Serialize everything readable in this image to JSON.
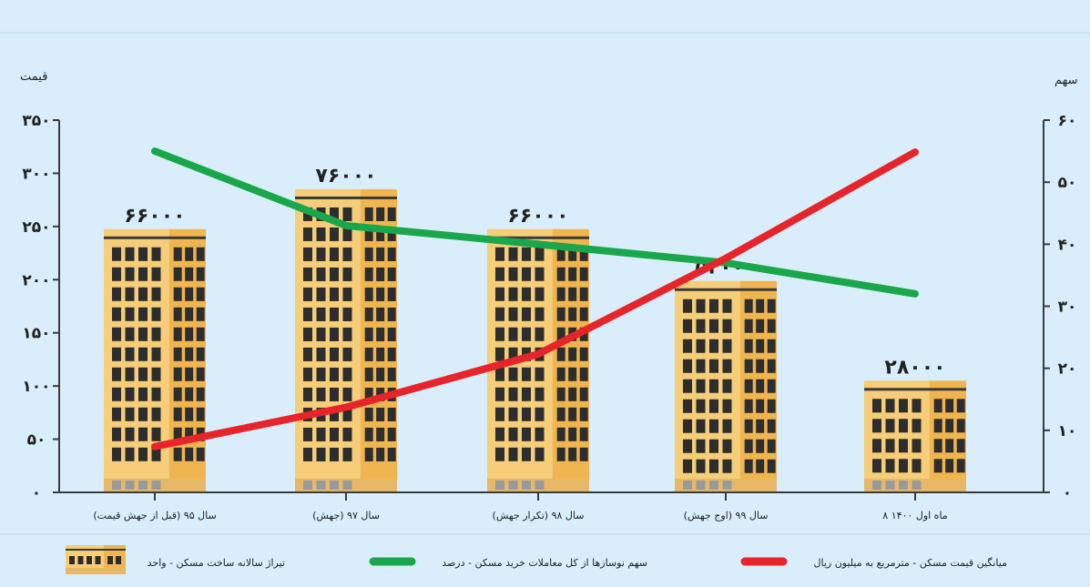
{
  "chart_data": {
    "type": "bar",
    "categories": [
      "سال ۹۵ (قبل از جهش قیمت)",
      "سال ۹۷ (جهش)",
      "سال ۹۸ (تکرار جهش)",
      "سال ۹۹ (اوج جهش)",
      "۸ ماه اول ۱۴۰۰"
    ],
    "left_axis": {
      "label": "قیمت",
      "ylim": [
        0,
        350
      ],
      "ticks": [
        0,
        50,
        100,
        150,
        200,
        250,
        300,
        350
      ],
      "tick_labels": [
        "۰",
        "۵۰",
        "۱۰۰",
        "۱۵۰",
        "۲۰۰",
        "۲۵۰",
        "۳۰۰",
        "۳۵۰"
      ]
    },
    "right_axis": {
      "label": "سهم",
      "ylim": [
        0,
        60
      ],
      "ticks": [
        0,
        10,
        20,
        30,
        40,
        50,
        60
      ],
      "tick_labels": [
        "۰",
        "۱۰",
        "۲۰",
        "۳۰",
        "۴۰",
        "۵۰",
        "۶۰"
      ]
    },
    "series": [
      {
        "name": "تیراژ سالانه ساخت مسکن - واحد",
        "kind": "bar",
        "axis": "left",
        "values": [
          66000,
          76000,
          66000,
          53000,
          28000
        ],
        "value_labels": [
          "۶۶۰۰۰",
          "۷۶۰۰۰",
          "۶۶۰۰۰",
          "۵۳۰۰۰",
          "۲۸۰۰۰"
        ],
        "color": "#f6c86a"
      },
      {
        "name": "سهم نوسازها از کل معاملات خرید مسکن - درصد",
        "kind": "line",
        "axis": "right",
        "values": [
          55,
          43,
          40,
          37,
          32
        ],
        "color": "#1aa64a"
      },
      {
        "name": "میانگین قیمت مسکن - مترمربع به میلیون ریال",
        "kind": "line",
        "axis": "left",
        "values": [
          43,
          80,
          130,
          220,
          320
        ],
        "color": "#e8232a"
      }
    ],
    "grid": false
  }
}
